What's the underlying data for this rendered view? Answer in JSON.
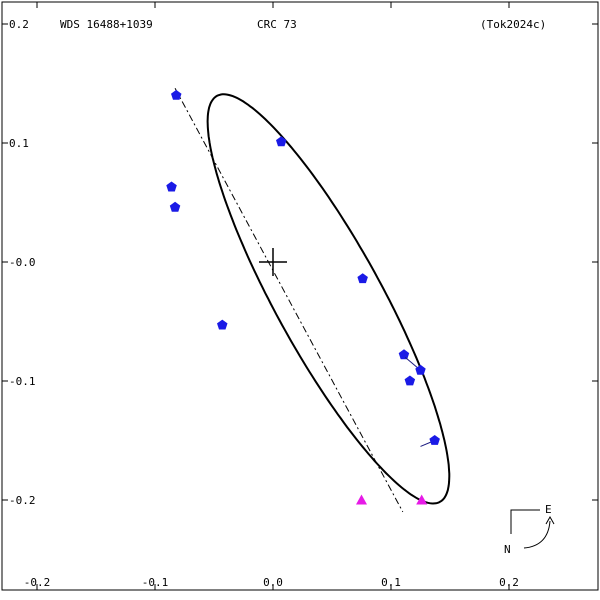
{
  "header": {
    "left": "WDS 16488+1039",
    "center": "CRC  73",
    "right": "(Tok2024c)"
  },
  "chart_data": {
    "type": "scatter",
    "title": "",
    "xlabel": "",
    "ylabel": "",
    "xlim": [
      -0.2,
      0.2
    ],
    "ylim": [
      -0.25,
      0.2
    ],
    "x_ticks": [
      -0.2,
      -0.1,
      0.0,
      0.1,
      0.2
    ],
    "x_tick_labels": [
      "-0.2",
      "-0.1",
      "0.0",
      "0.1",
      "0.2"
    ],
    "y_ticks": [
      0.2,
      0.1,
      0.0,
      -0.1,
      -0.2
    ],
    "y_tick_labels": [
      "0.2",
      "0.1",
      "-0.0",
      "-0.1",
      "-0.2"
    ],
    "orbit_ellipse": {
      "center": [
        0.047,
        -0.031
      ],
      "semi_major": 0.195,
      "semi_minor": 0.045,
      "tilt_deg": 61
    },
    "line_of_apsides": {
      "from": [
        -0.083,
        0.146
      ],
      "to": [
        0.11,
        -0.21
      ]
    },
    "primary_star": [
      0.0,
      0.0
    ],
    "measurements_visual": [
      {
        "obs": [
          -0.082,
          0.14
        ],
        "fit": [
          -0.082,
          0.14
        ]
      },
      {
        "obs": [
          0.007,
          0.101
        ],
        "fit": [
          0.007,
          0.101
        ]
      },
      {
        "obs": [
          -0.086,
          0.063
        ],
        "fit": [
          -0.086,
          0.063
        ]
      },
      {
        "obs": [
          -0.083,
          0.046
        ],
        "fit": [
          -0.083,
          0.046
        ]
      },
      {
        "obs": [
          0.076,
          -0.014
        ],
        "fit": [
          0.076,
          -0.014
        ]
      },
      {
        "obs": [
          -0.043,
          -0.053
        ],
        "fit": [
          -0.043,
          -0.053
        ]
      },
      {
        "obs": [
          0.111,
          -0.078
        ],
        "fit": [
          0.111,
          -0.078
        ]
      },
      {
        "obs": [
          0.125,
          -0.091
        ],
        "fit": [
          0.112,
          -0.08
        ]
      },
      {
        "obs": [
          0.116,
          -0.1
        ],
        "fit": [
          0.116,
          -0.1
        ]
      },
      {
        "obs": [
          0.137,
          -0.15
        ],
        "fit": [
          0.125,
          -0.155
        ]
      }
    ],
    "measurements_other": [
      [
        0.075,
        -0.2
      ],
      [
        0.126,
        -0.2
      ]
    ],
    "colors": {
      "visual": "#1a1ae6",
      "other": "#e61ae6",
      "orbit": "#000000"
    },
    "compass": {
      "east": "E",
      "north": "N"
    }
  }
}
